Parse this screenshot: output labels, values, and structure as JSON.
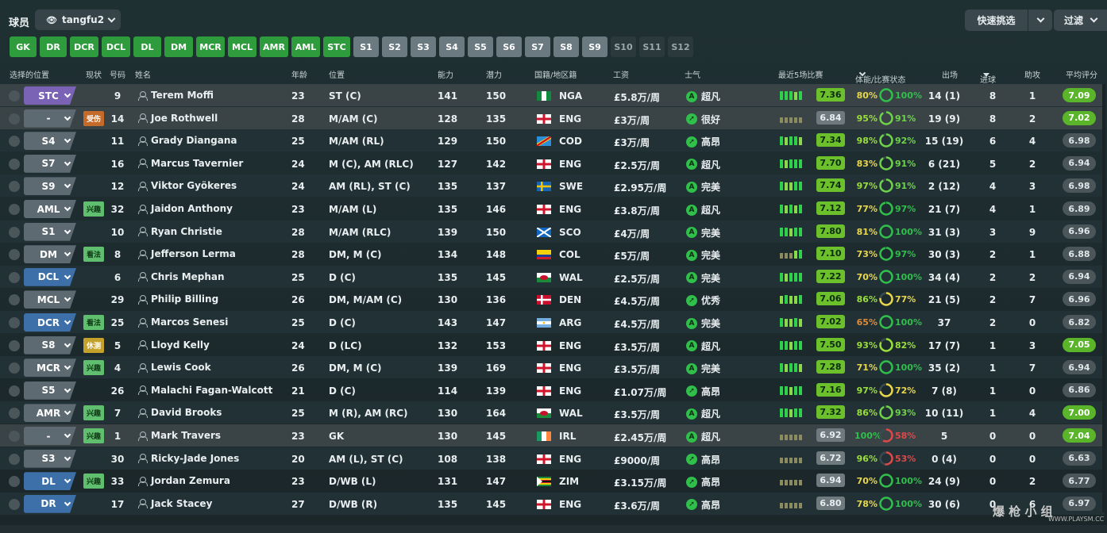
{
  "top": {
    "title": "球员",
    "view": "tangfu2",
    "quick": "快速挑选",
    "filter": "过滤"
  },
  "positions": [
    {
      "l": "GK",
      "s": "green",
      "w": 34
    },
    {
      "l": "DR",
      "s": "green",
      "w": 34
    },
    {
      "l": "DCR",
      "s": "green",
      "w": 36
    },
    {
      "l": "DCL",
      "s": "green",
      "w": 36
    },
    {
      "l": "DL",
      "s": "green",
      "w": 35
    },
    {
      "l": "DM",
      "s": "green",
      "w": 36
    },
    {
      "l": "MCR",
      "s": "green",
      "w": 36
    },
    {
      "l": "MCL",
      "s": "green",
      "w": 36
    },
    {
      "l": "AMR",
      "s": "green",
      "w": 36
    },
    {
      "l": "AML",
      "s": "green",
      "w": 36
    },
    {
      "l": "STC",
      "s": "green",
      "w": 34
    },
    {
      "l": "S1",
      "s": "grey",
      "w": 32
    },
    {
      "l": "S2",
      "s": "grey",
      "w": 32
    },
    {
      "l": "S3",
      "s": "grey",
      "w": 32
    },
    {
      "l": "S4",
      "s": "grey",
      "w": 32
    },
    {
      "l": "S5",
      "s": "grey",
      "w": 32
    },
    {
      "l": "S6",
      "s": "grey",
      "w": 32
    },
    {
      "l": "S7",
      "s": "grey",
      "w": 32
    },
    {
      "l": "S8",
      "s": "grey",
      "w": 32
    },
    {
      "l": "S9",
      "s": "grey",
      "w": 32
    },
    {
      "l": "S10",
      "s": "dark",
      "w": 32
    },
    {
      "l": "S11",
      "s": "dark",
      "w": 32
    },
    {
      "l": "S12",
      "s": "dark",
      "w": 32
    }
  ],
  "headers": {
    "selpos": "选择的位置",
    "status": "现状",
    "no": "号码",
    "name": "姓名",
    "age": "年龄",
    "pos": "位置",
    "ca": "能力",
    "pa": "潜力",
    "nat": "国籍/地区籍",
    "wage": "工资",
    "morale": "士气",
    "last5": "最近5场比赛",
    "fitness": "体能/比赛状态",
    "apps": "出场",
    "goals": "进球",
    "assists": "助攻",
    "avg": "平均评分"
  },
  "colors": {
    "stc": "#7a62b5",
    "mid": "#5d6a72",
    "def": "#3d6fa8",
    "good": "#2fbf4a",
    "muted": "#707c80",
    "avgGreen": "#6cc02b"
  },
  "players": [
    {
      "sel": "STC",
      "selc": "stc",
      "st": "",
      "no": "9",
      "name": "Terem Moffi",
      "age": "23",
      "pos": "ST (C)",
      "ca": "141",
      "pa": "150",
      "flag": "NGA",
      "nat": "NGA",
      "wage": "£5.8万/周",
      "mor": "超凡",
      "mi": "A",
      "bars": [
        3,
        3,
        3,
        2,
        3
      ],
      "l5": "7.36",
      "l5g": true,
      "fit": "80%",
      "fitc": "#e9d74a",
      "cond": "100%",
      "condc": "#2fbf4a",
      "apps": "14 (1)",
      "g": "8",
      "a": "1",
      "avg": "7.09",
      "avgg": true
    },
    {
      "sel": "-",
      "selc": "mid",
      "st": "受伤",
      "stc": "#c46b29",
      "no": "14",
      "name": "Joe Rothwell",
      "age": "28",
      "pos": "M/AM (C)",
      "ca": "128",
      "pa": "135",
      "flag": "ENG",
      "nat": "ENG",
      "wage": "£3万/周",
      "mor": "很好",
      "mi": "➚",
      "bars": [
        1,
        1,
        1,
        1,
        1
      ],
      "l5": "6.84",
      "l5g": false,
      "fit": "95%",
      "fitc": "#9adf3a",
      "cond": "91%",
      "condc": "#6fd34a",
      "apps": "19 (9)",
      "g": "8",
      "a": "2",
      "avg": "7.02",
      "avgg": true
    },
    {
      "sel": "S4",
      "selc": "mid",
      "st": "",
      "no": "11",
      "name": "Grady Diangana",
      "age": "25",
      "pos": "M/AM (RL)",
      "ca": "129",
      "pa": "150",
      "flag": "COD",
      "nat": "COD",
      "wage": "£3万/周",
      "mor": "高昂",
      "mi": "➚",
      "bars": [
        3,
        2,
        3,
        3,
        2
      ],
      "l5": "7.34",
      "l5g": true,
      "fit": "98%",
      "fitc": "#9adf3a",
      "cond": "92%",
      "condc": "#6fd34a",
      "apps": "15 (19)",
      "g": "6",
      "a": "4",
      "avg": "6.98",
      "avgg": false
    },
    {
      "sel": "S7",
      "selc": "mid",
      "st": "",
      "no": "16",
      "name": "Marcus Tavernier",
      "age": "24",
      "pos": "M (C), AM (RLC)",
      "ca": "127",
      "pa": "142",
      "flag": "ENG",
      "nat": "ENG",
      "wage": "£2.5万/周",
      "mor": "超凡",
      "mi": "A",
      "bars": [
        3,
        2,
        3,
        3,
        3
      ],
      "l5": "7.70",
      "l5g": true,
      "fit": "83%",
      "fitc": "#e9d74a",
      "cond": "91%",
      "condc": "#6fd34a",
      "apps": "6 (21)",
      "g": "5",
      "a": "2",
      "avg": "6.94",
      "avgg": false
    },
    {
      "sel": "S9",
      "selc": "mid",
      "st": "",
      "no": "12",
      "name": "Viktor Gyökeres",
      "age": "24",
      "pos": "AM (RL), ST (C)",
      "ca": "135",
      "pa": "137",
      "flag": "SWE",
      "nat": "SWE",
      "wage": "£2.95万/周",
      "mor": "完美",
      "mi": "A",
      "bars": [
        3,
        2,
        2,
        3,
        3
      ],
      "l5": "7.74",
      "l5g": true,
      "fit": "97%",
      "fitc": "#9adf3a",
      "cond": "91%",
      "condc": "#6fd34a",
      "apps": "2 (12)",
      "g": "4",
      "a": "3",
      "avg": "6.98",
      "avgg": false
    },
    {
      "sel": "AML",
      "selc": "mid",
      "st": "兴趣",
      "stc": "#3f8f48",
      "no": "32",
      "name": "Jaidon Anthony",
      "age": "23",
      "pos": "M/AM (L)",
      "ca": "135",
      "pa": "146",
      "flag": "ENG",
      "nat": "ENG",
      "wage": "£3.8万/周",
      "mor": "超凡",
      "mi": "A",
      "bars": [
        3,
        2,
        3,
        2,
        3
      ],
      "l5": "7.12",
      "l5g": true,
      "fit": "77%",
      "fitc": "#e9d74a",
      "cond": "97%",
      "condc": "#2fbf4a",
      "apps": "21 (7)",
      "g": "4",
      "a": "1",
      "avg": "6.89",
      "avgg": false
    },
    {
      "sel": "S1",
      "selc": "mid",
      "st": "",
      "no": "10",
      "name": "Ryan Christie",
      "age": "28",
      "pos": "M/AM (RLC)",
      "ca": "139",
      "pa": "150",
      "flag": "SCO",
      "nat": "SCO",
      "wage": "£4万/周",
      "mor": "完美",
      "mi": "A",
      "bars": [
        3,
        3,
        2,
        3,
        3
      ],
      "l5": "7.80",
      "l5g": true,
      "fit": "81%",
      "fitc": "#e9d74a",
      "cond": "100%",
      "condc": "#2fbf4a",
      "apps": "31 (3)",
      "g": "3",
      "a": "9",
      "avg": "6.96",
      "avgg": false
    },
    {
      "sel": "DM",
      "selc": "mid",
      "st": "看法",
      "stc": "#3f8f48",
      "no": "8",
      "name": "Jefferson Lerma",
      "age": "28",
      "pos": "DM, M (C)",
      "ca": "134",
      "pa": "148",
      "flag": "COL",
      "nat": "COL",
      "wage": "£5万/周",
      "mor": "完美",
      "mi": "A",
      "bars": [
        1,
        1,
        1,
        2,
        3
      ],
      "l5": "7.10",
      "l5g": true,
      "fit": "73%",
      "fitc": "#e9d74a",
      "cond": "97%",
      "condc": "#2fbf4a",
      "apps": "30 (3)",
      "g": "2",
      "a": "1",
      "avg": "6.88",
      "avgg": false
    },
    {
      "sel": "DCL",
      "selc": "def",
      "st": "",
      "no": "6",
      "name": "Chris Mephan",
      "age": "25",
      "pos": "D (C)",
      "ca": "135",
      "pa": "145",
      "flag": "WAL",
      "nat": "WAL",
      "wage": "£2.5万/周",
      "mor": "完美",
      "mi": "A",
      "bars": [
        3,
        2,
        3,
        3,
        3
      ],
      "l5": "7.22",
      "l5g": true,
      "fit": "70%",
      "fitc": "#e9d74a",
      "cond": "100%",
      "condc": "#2fbf4a",
      "apps": "34 (4)",
      "g": "2",
      "a": "2",
      "avg": "6.94",
      "avgg": false
    },
    {
      "sel": "MCL",
      "selc": "mid",
      "st": "",
      "no": "29",
      "name": "Philip Billing",
      "age": "26",
      "pos": "DM, M/AM (C)",
      "ca": "130",
      "pa": "136",
      "flag": "DEN",
      "nat": "DEN",
      "wage": "£4.5万/周",
      "mor": "优秀",
      "mi": "➚",
      "bars": [
        2,
        3,
        2,
        2,
        3
      ],
      "l5": "7.06",
      "l5g": true,
      "fit": "86%",
      "fitc": "#9adf3a",
      "cond": "77%",
      "condc": "#e9d74a",
      "apps": "21 (5)",
      "g": "2",
      "a": "7",
      "avg": "6.96",
      "avgg": false
    },
    {
      "sel": "DCR",
      "selc": "def",
      "st": "看法",
      "stc": "#3f8f48",
      "no": "25",
      "name": "Marcos Senesi",
      "age": "25",
      "pos": "D (C)",
      "ca": "143",
      "pa": "147",
      "flag": "ARG",
      "nat": "ARG",
      "wage": "£4.5万/周",
      "mor": "完美",
      "mi": "A",
      "bars": [
        3,
        2,
        2,
        3,
        2
      ],
      "l5": "7.02",
      "l5g": true,
      "fit": "65%",
      "fitc": "#e08a35",
      "cond": "100%",
      "condc": "#2fbf4a",
      "apps": "37",
      "g": "2",
      "a": "0",
      "avg": "6.82",
      "avgg": false
    },
    {
      "sel": "S8",
      "selc": "mid",
      "st": "休测",
      "stc": "#c4a12b",
      "no": "5",
      "name": "Lloyd Kelly",
      "age": "24",
      "pos": "D (LC)",
      "ca": "132",
      "pa": "153",
      "flag": "ENG",
      "nat": "ENG",
      "wage": "£3.5万/周",
      "mor": "超凡",
      "mi": "A",
      "bars": [
        3,
        3,
        2,
        3,
        3
      ],
      "l5": "7.50",
      "l5g": true,
      "fit": "93%",
      "fitc": "#9adf3a",
      "cond": "82%",
      "condc": "#9adf3a",
      "apps": "17 (7)",
      "g": "1",
      "a": "3",
      "avg": "7.05",
      "avgg": true
    },
    {
      "sel": "MCR",
      "selc": "mid",
      "st": "兴趣",
      "stc": "#3f8f48",
      "no": "4",
      "name": "Lewis Cook",
      "age": "26",
      "pos": "DM, M (C)",
      "ca": "139",
      "pa": "169",
      "flag": "ENG",
      "nat": "ENG",
      "wage": "£3.5万/周",
      "mor": "完美",
      "mi": "A",
      "bars": [
        3,
        2,
        3,
        3,
        2
      ],
      "l5": "7.28",
      "l5g": true,
      "fit": "71%",
      "fitc": "#e9d74a",
      "cond": "100%",
      "condc": "#2fbf4a",
      "apps": "35 (2)",
      "g": "1",
      "a": "7",
      "avg": "6.94",
      "avgg": false
    },
    {
      "sel": "S5",
      "selc": "mid",
      "st": "",
      "no": "26",
      "name": "Malachi Fagan-Walcott",
      "age": "21",
      "pos": "D (C)",
      "ca": "114",
      "pa": "139",
      "flag": "ENG",
      "nat": "ENG",
      "wage": "£1.07万/周",
      "mor": "高昂",
      "mi": "➚",
      "bars": [
        3,
        3,
        2,
        3,
        3
      ],
      "l5": "7.16",
      "l5g": true,
      "fit": "97%",
      "fitc": "#9adf3a",
      "cond": "72%",
      "condc": "#e9d74a",
      "apps": "7 (8)",
      "g": "1",
      "a": "0",
      "avg": "6.86",
      "avgg": false
    },
    {
      "sel": "AMR",
      "selc": "mid",
      "st": "兴趣",
      "stc": "#3f8f48",
      "no": "7",
      "name": "David Brooks",
      "age": "25",
      "pos": "M (R), AM (RC)",
      "ca": "130",
      "pa": "164",
      "flag": "WAL",
      "nat": "WAL",
      "wage": "£3.5万/周",
      "mor": "超凡",
      "mi": "A",
      "bars": [
        3,
        3,
        2,
        3,
        3
      ],
      "l5": "7.32",
      "l5g": true,
      "fit": "86%",
      "fitc": "#9adf3a",
      "cond": "93%",
      "condc": "#6fd34a",
      "apps": "10 (11)",
      "g": "1",
      "a": "4",
      "avg": "7.00",
      "avgg": true
    },
    {
      "sel": "-",
      "selc": "mid",
      "st": "兴趣",
      "stc": "#3f8f48",
      "no": "1",
      "name": "Mark Travers",
      "age": "23",
      "pos": "GK",
      "ca": "130",
      "pa": "145",
      "flag": "IRL",
      "nat": "IRL",
      "wage": "£2.45万/周",
      "mor": "超凡",
      "mi": "A",
      "bars": [
        1,
        1,
        1,
        1,
        1
      ],
      "l5": "6.92",
      "l5g": false,
      "fit": "100%",
      "fitc": "#2fbf4a",
      "cond": "58%",
      "condc": "#e04848",
      "apps": "5",
      "g": "0",
      "a": "0",
      "avg": "7.04",
      "avgg": true
    },
    {
      "sel": "S3",
      "selc": "mid",
      "st": "",
      "no": "30",
      "name": "Ricky-Jade Jones",
      "age": "20",
      "pos": "AM (L), ST (C)",
      "ca": "108",
      "pa": "138",
      "flag": "ENG",
      "nat": "ENG",
      "wage": "£9000/周",
      "mor": "高昂",
      "mi": "➚",
      "bars": [
        1,
        1,
        1,
        1,
        1
      ],
      "l5": "6.72",
      "l5g": false,
      "fit": "96%",
      "fitc": "#9adf3a",
      "cond": "53%",
      "condc": "#e04848",
      "apps": "0 (4)",
      "g": "0",
      "a": "0",
      "avg": "6.63",
      "avgg": false
    },
    {
      "sel": "DL",
      "selc": "def",
      "st": "兴趣",
      "stc": "#3f8f48",
      "no": "33",
      "name": "Jordan Zemura",
      "age": "23",
      "pos": "D/WB (L)",
      "ca": "131",
      "pa": "147",
      "flag": "ZIM",
      "nat": "ZIM",
      "wage": "£3.15万/周",
      "mor": "高昂",
      "mi": "➚",
      "bars": [
        1,
        1,
        1,
        1,
        1
      ],
      "l5": "6.94",
      "l5g": false,
      "fit": "70%",
      "fitc": "#e9d74a",
      "cond": "100%",
      "condc": "#2fbf4a",
      "apps": "24 (9)",
      "g": "0",
      "a": "2",
      "avg": "6.77",
      "avgg": false
    },
    {
      "sel": "DR",
      "selc": "def",
      "st": "",
      "no": "17",
      "name": "Jack Stacey",
      "age": "27",
      "pos": "D/WB (R)",
      "ca": "135",
      "pa": "145",
      "flag": "ENG",
      "nat": "ENG",
      "wage": "£3.6万/周",
      "mor": "高昂",
      "mi": "➚",
      "bars": [
        1,
        1,
        1,
        1,
        1
      ],
      "l5": "6.80",
      "l5g": false,
      "fit": "78%",
      "fitc": "#e9d74a",
      "cond": "100%",
      "condc": "#2fbf4a",
      "apps": "30 (6)",
      "g": "0",
      "a": "6",
      "avg": "6.97",
      "avgg": false
    }
  ],
  "watermark": {
    "cn": "爆 枪 小 组",
    "url": "WWW.PLAYSM.CC"
  }
}
